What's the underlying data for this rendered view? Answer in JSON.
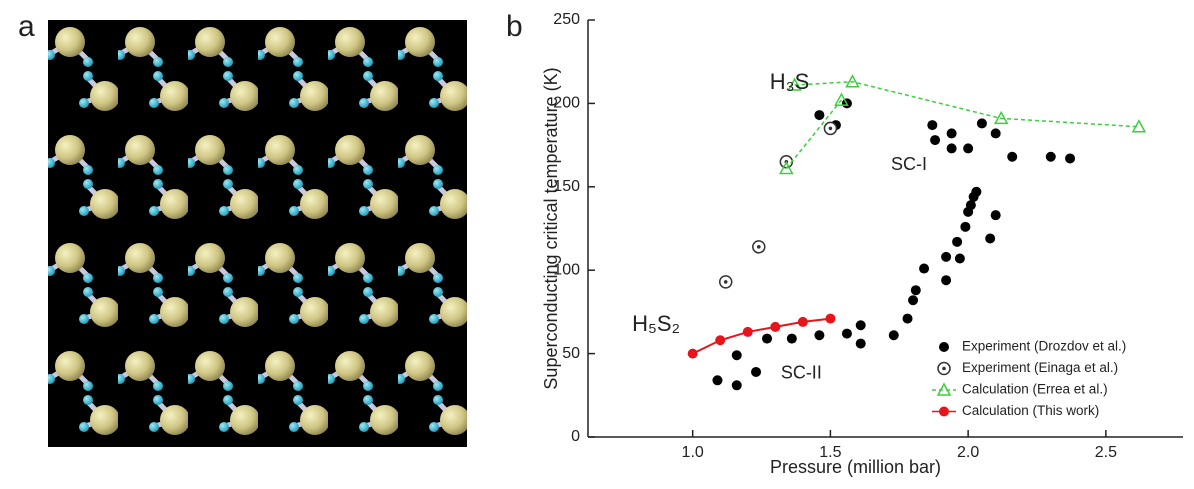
{
  "panel_labels": [
    "a",
    "b"
  ],
  "chart_data": {
    "type": "scatter",
    "x_label": "Pressure (million bar)",
    "y_label": "Superconducting critical temperature (K)",
    "xlim": [
      0.62,
      2.78
    ],
    "ylim": [
      0,
      250
    ],
    "xticks": [
      {
        "value": 1,
        "label": "1.0"
      },
      {
        "value": 1.5,
        "label": "1.5"
      },
      {
        "value": 2,
        "label": "2.0"
      },
      {
        "value": 2.5,
        "label": "2.5"
      }
    ],
    "yticks": [
      0,
      50,
      100,
      150,
      200,
      250
    ],
    "legend": "lower right",
    "annotations": [
      {
        "text": "H₃S",
        "x": 1.28,
        "y": 212,
        "color": "#3ccf3c"
      },
      {
        "text": "H₅S₂",
        "x": 0.78,
        "y": 67,
        "color": "#e8141c"
      },
      {
        "text": "SC-I",
        "x": 1.72,
        "y": 163,
        "color": "#222222"
      },
      {
        "text": "SC-II",
        "x": 1.32,
        "y": 38,
        "color": "#222222"
      }
    ],
    "series": [
      {
        "name": "Experiment (Drozdov et al.)",
        "color": "#000000",
        "marker": "circle",
        "line": false,
        "x": [
          1.09,
          1.16,
          1.16,
          1.23,
          1.27,
          1.36,
          1.46,
          1.56,
          1.61,
          1.61,
          1.73,
          1.78,
          1.8,
          1.81,
          1.84,
          1.92,
          1.92,
          1.96,
          1.97,
          1.99,
          2.0,
          2.01,
          2.02,
          2.03,
          2.08,
          2.1,
          1.46,
          1.52,
          1.56,
          1.87,
          1.88,
          1.94,
          1.94,
          2.0,
          2.05,
          2.1,
          2.16,
          2.3,
          2.37
        ],
        "values": [
          34,
          31,
          49,
          39,
          59,
          59,
          61,
          62,
          56,
          67,
          61,
          71,
          82,
          88,
          101,
          108,
          94,
          117,
          107,
          126,
          135,
          139,
          144,
          147,
          119,
          133,
          193,
          187,
          200,
          187,
          178,
          182,
          173,
          173,
          188,
          182,
          168,
          168,
          167
        ]
      },
      {
        "name": "Experiment (Einaga et al.)",
        "color": "#333333",
        "marker": "ring",
        "line": false,
        "x": [
          1.12,
          1.24,
          1.34,
          1.5
        ],
        "values": [
          93,
          114,
          165,
          185
        ]
      },
      {
        "name": "Calculation (Errea et al.)",
        "color": "#3ccf3c",
        "marker": "triangle",
        "line": true,
        "x": [
          1.34,
          1.54,
          null,
          1.37,
          1.58,
          2.12,
          2.62
        ],
        "values": [
          161,
          202,
          null,
          211,
          213,
          191,
          186
        ]
      },
      {
        "name": "Calculation (This work)",
        "color": "#e8141c",
        "marker": "dot",
        "line": true,
        "x": [
          1.0,
          1.1,
          1.2,
          1.3,
          1.4,
          1.5
        ],
        "values": [
          50,
          58,
          63,
          66,
          69,
          71
        ]
      }
    ]
  }
}
